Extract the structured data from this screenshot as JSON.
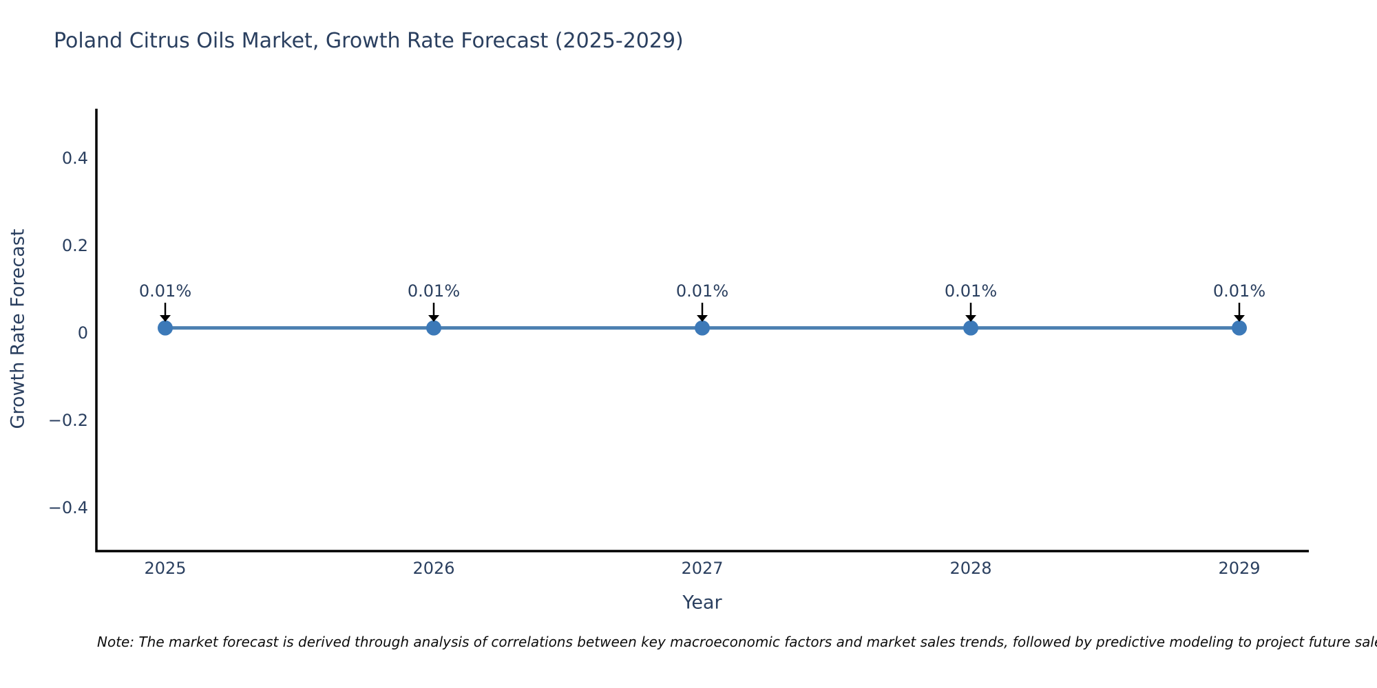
{
  "page": {
    "background": "#ffffff"
  },
  "chart_data": {
    "type": "line",
    "title": "Poland Citrus Oils Market, Growth Rate Forecast (2025-2029)",
    "xlabel": "Year",
    "ylabel": "Growth Rate Forecast",
    "x": [
      2025,
      2026,
      2027,
      2028,
      2029
    ],
    "series": [
      {
        "name": "Growth Rate Forecast",
        "values": [
          0.01,
          0.01,
          0.01,
          0.01,
          0.01
        ],
        "point_labels": [
          "0.01%",
          "0.01%",
          "0.01%",
          "0.01%",
          "0.01%"
        ]
      }
    ],
    "xticks": [
      "2025",
      "2026",
      "2027",
      "2028",
      "2029"
    ],
    "yticks": [
      {
        "value": 0.4,
        "label": "0.4"
      },
      {
        "value": 0.2,
        "label": "0.2"
      },
      {
        "value": 0,
        "label": "0"
      },
      {
        "value": -0.2,
        "label": "−0.2"
      },
      {
        "value": -0.4,
        "label": "−0.4"
      }
    ],
    "ylim": [
      -0.5,
      0.51
    ],
    "grid": false,
    "legend_position": "none",
    "colors": {
      "line": "#4C80B1",
      "marker": "#3C79B8",
      "axis_line": "#000000",
      "tick_text": "#2a3f5f",
      "annotation_text": "#2a3f5f",
      "annotation_arrow": "#000000",
      "title_text": "#2a3f5f"
    }
  },
  "note": {
    "text": "Note: The market forecast is derived through analysis of correlations between key macroeconomic factors and market sales trends, followed by predictive modeling to project future sales"
  }
}
